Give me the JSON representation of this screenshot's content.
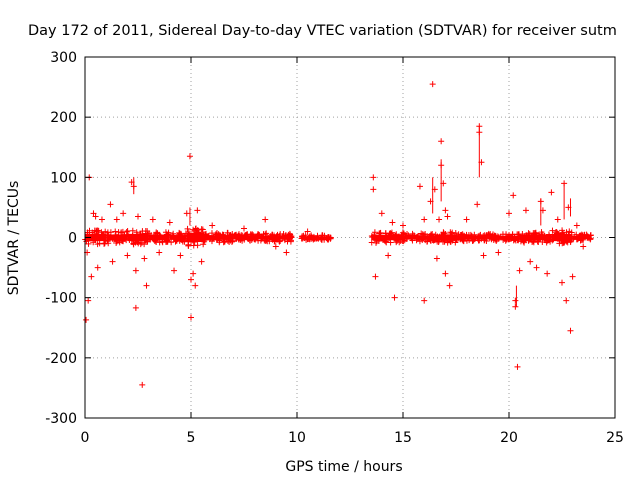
{
  "chart_data": {
    "type": "scatter",
    "title": "Day 172 of 2011, Sidereal Day-to-day VTEC variation (SDTVAR) for receiver sutm",
    "xlabel": "GPS time / hours",
    "ylabel": "SDTVAR / TECUs",
    "xlim": [
      0,
      25
    ],
    "ylim": [
      -300,
      300
    ],
    "xticks": [
      0,
      5,
      10,
      15,
      20,
      25
    ],
    "yticks": [
      -300,
      -200,
      -100,
      0,
      100,
      200,
      300
    ],
    "grid": true,
    "marker": "+",
    "colors": {
      "series": "#ff0000",
      "grid": "#a0a0a0",
      "axis": "#000000"
    },
    "gaps": [
      [
        9.8,
        10.2
      ],
      [
        11.6,
        13.5
      ]
    ],
    "dense_segments": [
      {
        "x": [
          0.0,
          1.0
        ],
        "y": [
          -12,
          12
        ]
      },
      {
        "x": [
          1.0,
          2.0
        ],
        "y": [
          -10,
          10
        ]
      },
      {
        "x": [
          2.0,
          3.0
        ],
        "y": [
          -12,
          12
        ]
      },
      {
        "x": [
          3.0,
          4.0
        ],
        "y": [
          -9,
          9
        ]
      },
      {
        "x": [
          4.0,
          4.8
        ],
        "y": [
          -8,
          8
        ]
      },
      {
        "x": [
          4.8,
          5.6
        ],
        "y": [
          -15,
          15
        ]
      },
      {
        "x": [
          5.6,
          7.0
        ],
        "y": [
          -8,
          8
        ]
      },
      {
        "x": [
          7.0,
          8.5
        ],
        "y": [
          -6,
          6
        ]
      },
      {
        "x": [
          8.5,
          9.8
        ],
        "y": [
          -7,
          7
        ]
      },
      {
        "x": [
          10.2,
          11.6
        ],
        "y": [
          -4,
          4
        ]
      },
      {
        "x": [
          13.5,
          15.0
        ],
        "y": [
          -9,
          9
        ]
      },
      {
        "x": [
          15.0,
          16.5
        ],
        "y": [
          -7,
          7
        ]
      },
      {
        "x": [
          16.5,
          17.5
        ],
        "y": [
          -9,
          9
        ]
      },
      {
        "x": [
          17.5,
          19.0
        ],
        "y": [
          -6,
          6
        ]
      },
      {
        "x": [
          19.0,
          20.5
        ],
        "y": [
          -6,
          6
        ]
      },
      {
        "x": [
          20.5,
          22.0
        ],
        "y": [
          -9,
          9
        ]
      },
      {
        "x": [
          22.0,
          23.0
        ],
        "y": [
          -12,
          12
        ]
      },
      {
        "x": [
          23.0,
          23.9
        ],
        "y": [
          -5,
          5
        ]
      }
    ],
    "outliers": [
      [
        0.1,
        -25
      ],
      [
        0.2,
        100
      ],
      [
        0.15,
        -105
      ],
      [
        0.05,
        -137
      ],
      [
        0.3,
        -65
      ],
      [
        0.4,
        40
      ],
      [
        0.5,
        35
      ],
      [
        0.6,
        -50
      ],
      [
        0.8,
        30
      ],
      [
        1.2,
        55
      ],
      [
        1.3,
        -40
      ],
      [
        1.5,
        30
      ],
      [
        1.8,
        40
      ],
      [
        2.0,
        -30
      ],
      [
        2.2,
        92
      ],
      [
        2.3,
        85
      ],
      [
        2.4,
        -55
      ],
      [
        2.4,
        -117
      ],
      [
        2.5,
        35
      ],
      [
        2.7,
        -245
      ],
      [
        2.8,
        -35
      ],
      [
        2.9,
        -80
      ],
      [
        3.2,
        30
      ],
      [
        3.5,
        -25
      ],
      [
        4.0,
        25
      ],
      [
        4.2,
        -55
      ],
      [
        4.5,
        -30
      ],
      [
        4.8,
        40
      ],
      [
        4.95,
        135
      ],
      [
        5.0,
        -133
      ],
      [
        5.0,
        -70
      ],
      [
        5.1,
        -60
      ],
      [
        5.2,
        -80
      ],
      [
        5.3,
        45
      ],
      [
        5.5,
        -40
      ],
      [
        6.0,
        20
      ],
      [
        7.5,
        15
      ],
      [
        8.5,
        30
      ],
      [
        9.0,
        -15
      ],
      [
        9.5,
        -25
      ],
      [
        10.5,
        10
      ],
      [
        13.6,
        100
      ],
      [
        13.6,
        80
      ],
      [
        13.7,
        -65
      ],
      [
        14.0,
        40
      ],
      [
        14.3,
        -30
      ],
      [
        14.5,
        25
      ],
      [
        14.6,
        -100
      ],
      [
        15.0,
        20
      ],
      [
        15.8,
        85
      ],
      [
        16.0,
        30
      ],
      [
        16.0,
        -105
      ],
      [
        16.3,
        60
      ],
      [
        16.4,
        255
      ],
      [
        16.5,
        80
      ],
      [
        16.6,
        -35
      ],
      [
        16.7,
        30
      ],
      [
        16.8,
        160
      ],
      [
        16.8,
        120
      ],
      [
        16.9,
        90
      ],
      [
        17.0,
        -60
      ],
      [
        17.0,
        45
      ],
      [
        17.1,
        35
      ],
      [
        17.2,
        -80
      ],
      [
        18.0,
        30
      ],
      [
        18.5,
        55
      ],
      [
        18.6,
        185
      ],
      [
        18.6,
        175
      ],
      [
        18.7,
        125
      ],
      [
        18.8,
        -30
      ],
      [
        19.5,
        -25
      ],
      [
        20.0,
        40
      ],
      [
        20.2,
        70
      ],
      [
        20.3,
        -105
      ],
      [
        20.3,
        -115
      ],
      [
        20.4,
        -215
      ],
      [
        20.5,
        -55
      ],
      [
        20.8,
        45
      ],
      [
        21.0,
        -40
      ],
      [
        21.3,
        -50
      ],
      [
        21.5,
        60
      ],
      [
        21.6,
        45
      ],
      [
        21.8,
        -60
      ],
      [
        22.0,
        75
      ],
      [
        22.3,
        30
      ],
      [
        22.5,
        -75
      ],
      [
        22.6,
        90
      ],
      [
        22.7,
        -105
      ],
      [
        22.8,
        50
      ],
      [
        22.9,
        -155
      ],
      [
        23.0,
        -65
      ],
      [
        23.2,
        20
      ],
      [
        23.5,
        -15
      ]
    ],
    "outlier_stems": [
      [
        2.3,
        72,
        100
      ],
      [
        4.95,
        20,
        50
      ],
      [
        16.4,
        40,
        100
      ],
      [
        16.8,
        60,
        130
      ],
      [
        18.6,
        100,
        185
      ],
      [
        20.35,
        -115,
        -80
      ],
      [
        21.5,
        20,
        65
      ],
      [
        22.6,
        30,
        90
      ],
      [
        22.9,
        35,
        65
      ]
    ]
  }
}
